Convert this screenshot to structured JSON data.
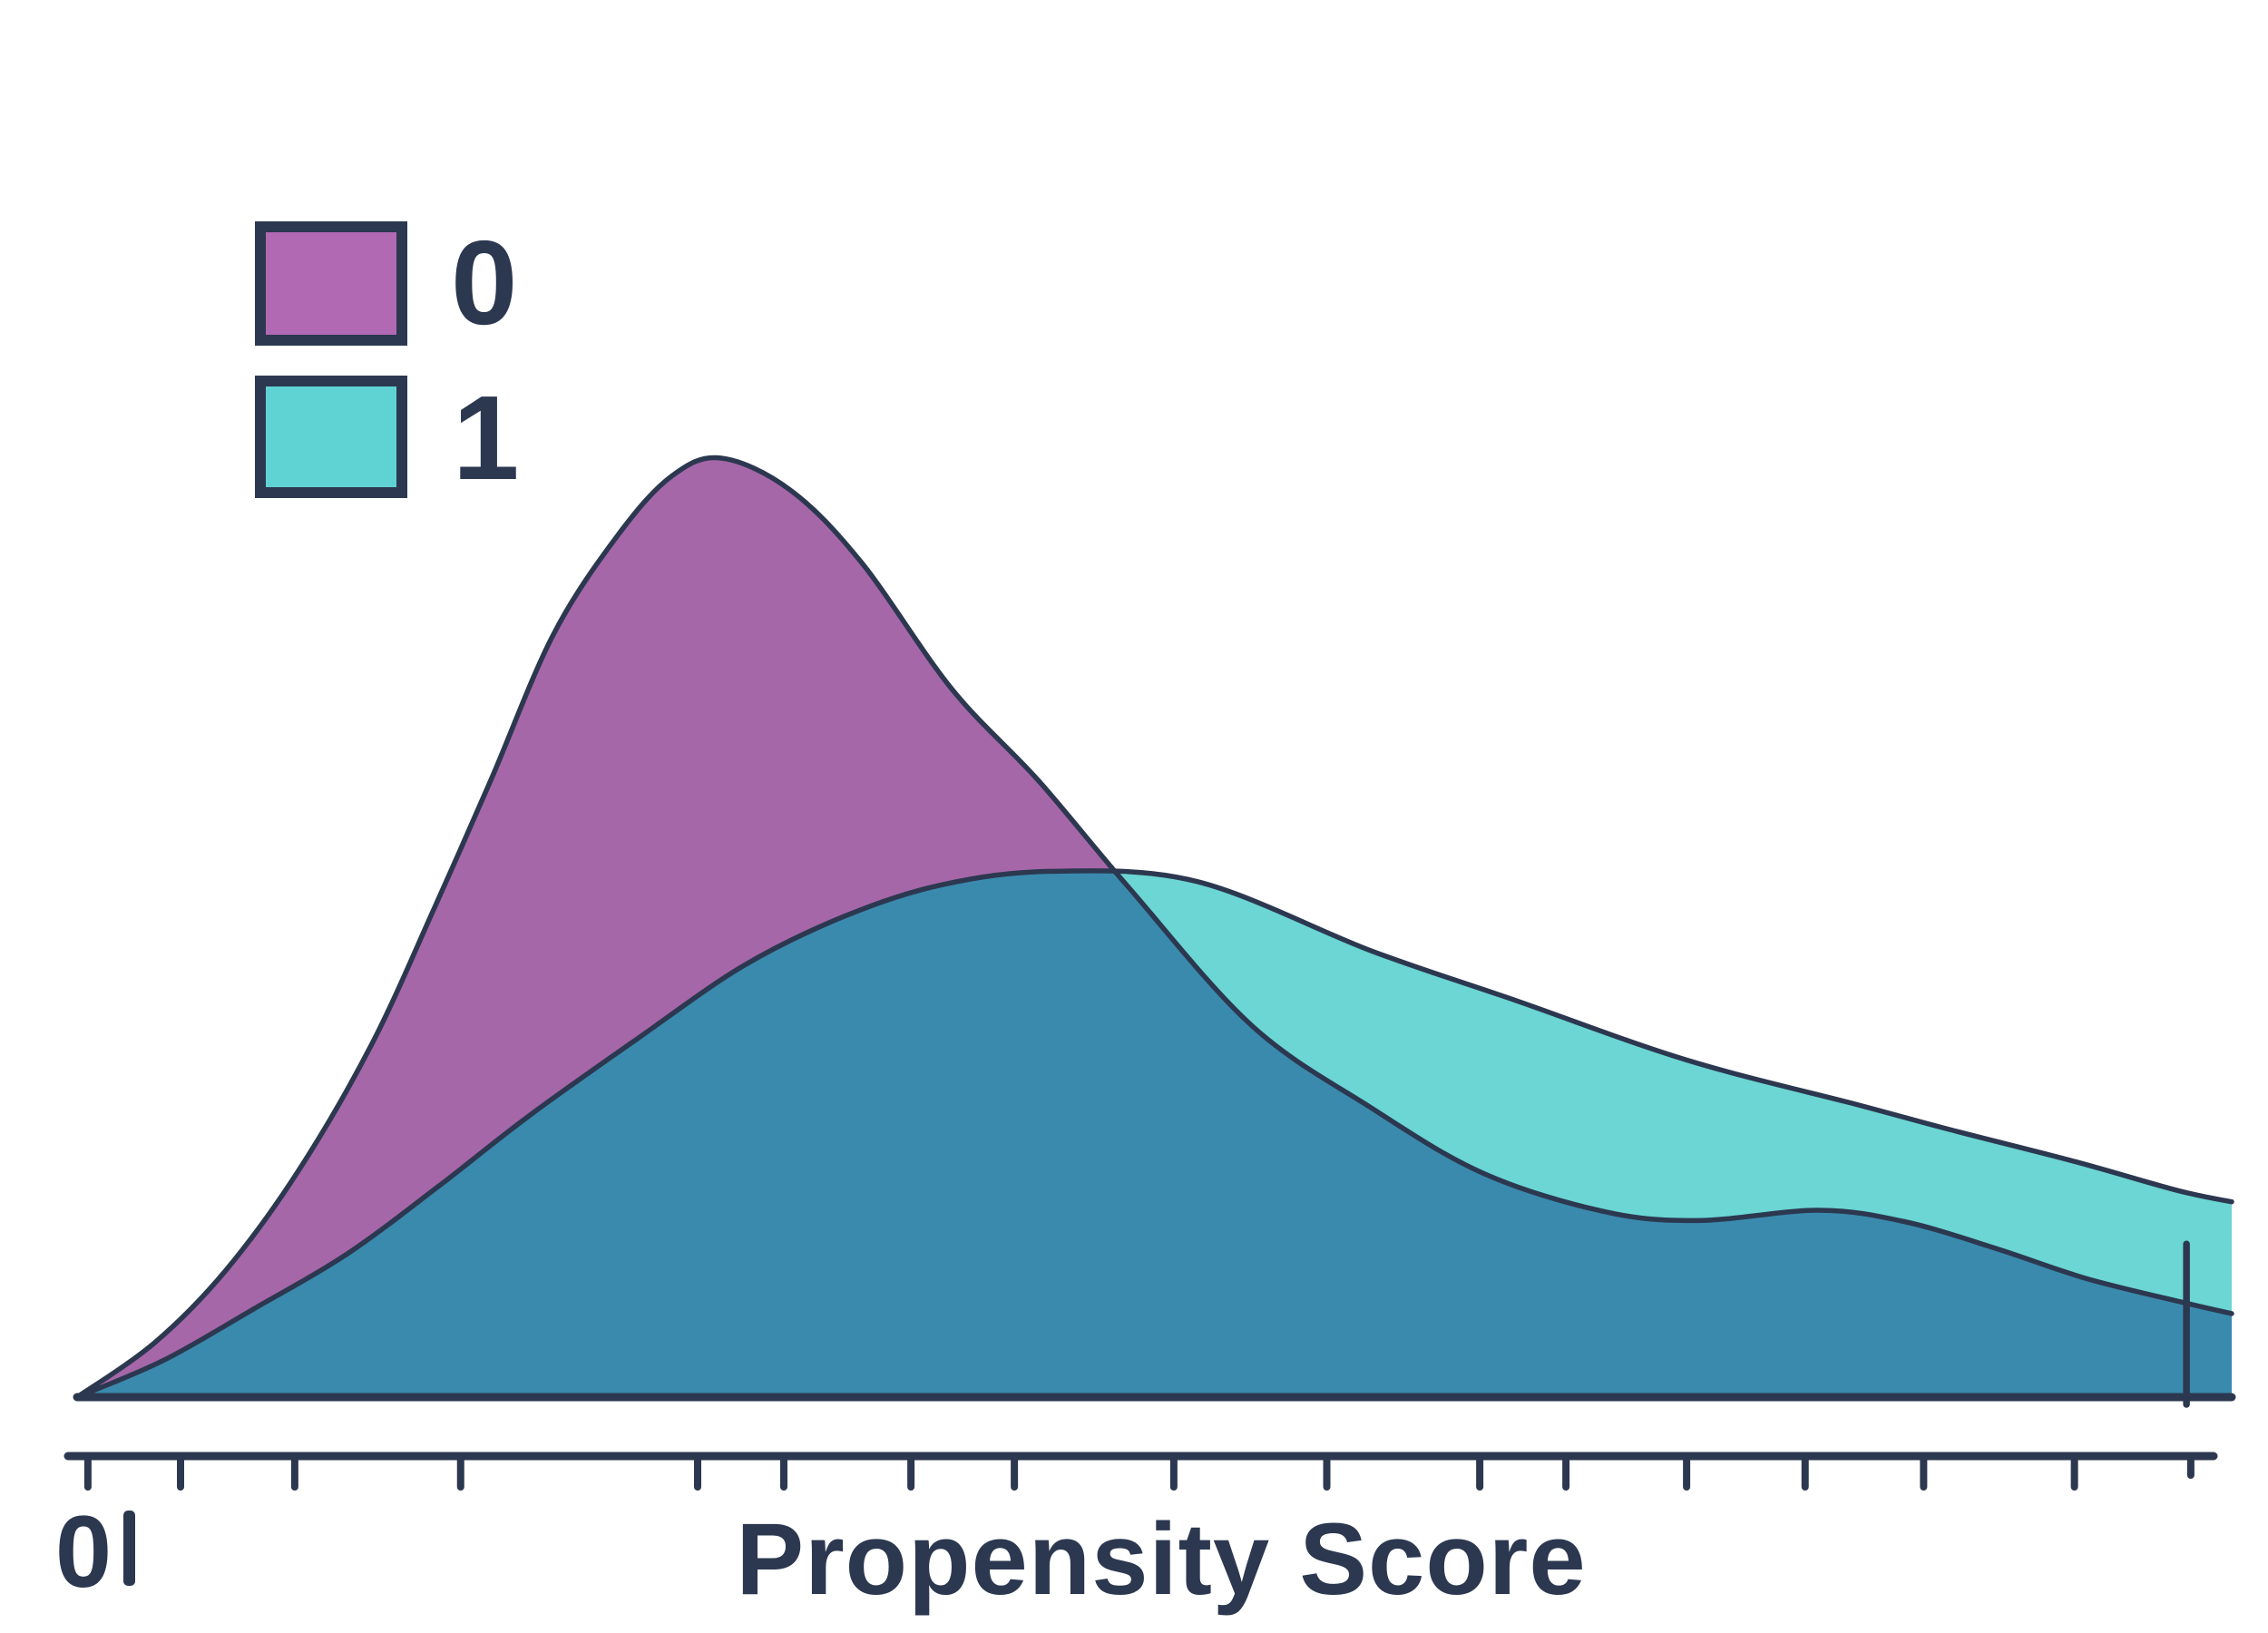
{
  "figure": {
    "background": "#ffffff",
    "ink_color": "#2c3850"
  },
  "legend": {
    "position": "upper left",
    "entries": [
      {
        "label": "0",
        "color": "#b169b3"
      },
      {
        "label": "1",
        "color": "#5fd3d3"
      }
    ]
  },
  "x_axis": {
    "label": "Propensity Score",
    "tick_label": "0",
    "ticks": [
      {
        "x": 0.005
      },
      {
        "x": 0.048
      },
      {
        "x": 0.101
      },
      {
        "x": 0.178
      },
      {
        "x": 0.288
      },
      {
        "x": 0.328
      },
      {
        "x": 0.387
      },
      {
        "x": 0.435
      },
      {
        "x": 0.509
      },
      {
        "x": 0.58
      },
      {
        "x": 0.651
      },
      {
        "x": 0.691
      },
      {
        "x": 0.747
      },
      {
        "x": 0.802
      },
      {
        "x": 0.857
      },
      {
        "x": 0.927
      },
      {
        "x": 0.981,
        "short": true
      }
    ]
  },
  "chart_data": {
    "type": "area",
    "subtype": "kde-density-overlay",
    "title": "",
    "xlabel": "Propensity Score",
    "ylabel": "",
    "xlim": [
      0,
      1
    ],
    "grid": false,
    "legend_position": "upper left",
    "overlap_fill": "#3a8aad",
    "series": [
      {
        "name": "0",
        "fill": "#a667a9",
        "points": [
          [
            0.0,
            0.0
          ],
          [
            0.036,
            0.058
          ],
          [
            0.069,
            0.135
          ],
          [
            0.103,
            0.242
          ],
          [
            0.137,
            0.377
          ],
          [
            0.166,
            0.522
          ],
          [
            0.192,
            0.657
          ],
          [
            0.221,
            0.812
          ],
          [
            0.251,
            0.918
          ],
          [
            0.276,
            0.981
          ],
          [
            0.299,
            1.0
          ],
          [
            0.331,
            0.966
          ],
          [
            0.364,
            0.889
          ],
          [
            0.406,
            0.754
          ],
          [
            0.446,
            0.657
          ],
          [
            0.488,
            0.543
          ],
          [
            0.545,
            0.396
          ],
          [
            0.6,
            0.309
          ],
          [
            0.652,
            0.239
          ],
          [
            0.708,
            0.198
          ],
          [
            0.752,
            0.188
          ],
          [
            0.808,
            0.199
          ],
          [
            0.848,
            0.187
          ],
          [
            0.891,
            0.158
          ],
          [
            0.933,
            0.126
          ],
          [
            0.979,
            0.1
          ],
          [
            1.0,
            0.089
          ]
        ]
      },
      {
        "name": "1",
        "fill": "#6bd6d4",
        "points": [
          [
            0.0,
            0.0
          ],
          [
            0.04,
            0.039
          ],
          [
            0.082,
            0.094
          ],
          [
            0.125,
            0.152
          ],
          [
            0.168,
            0.225
          ],
          [
            0.21,
            0.3
          ],
          [
            0.259,
            0.38
          ],
          [
            0.309,
            0.459
          ],
          [
            0.356,
            0.512
          ],
          [
            0.402,
            0.546
          ],
          [
            0.453,
            0.56
          ],
          [
            0.52,
            0.549
          ],
          [
            0.601,
            0.475
          ],
          [
            0.667,
            0.423
          ],
          [
            0.747,
            0.359
          ],
          [
            0.827,
            0.311
          ],
          [
            0.869,
            0.285
          ],
          [
            0.927,
            0.251
          ],
          [
            0.975,
            0.22
          ],
          [
            1.0,
            0.208
          ]
        ]
      }
    ],
    "rug_mark": {
      "x": 0.979,
      "height": 0.163
    }
  }
}
